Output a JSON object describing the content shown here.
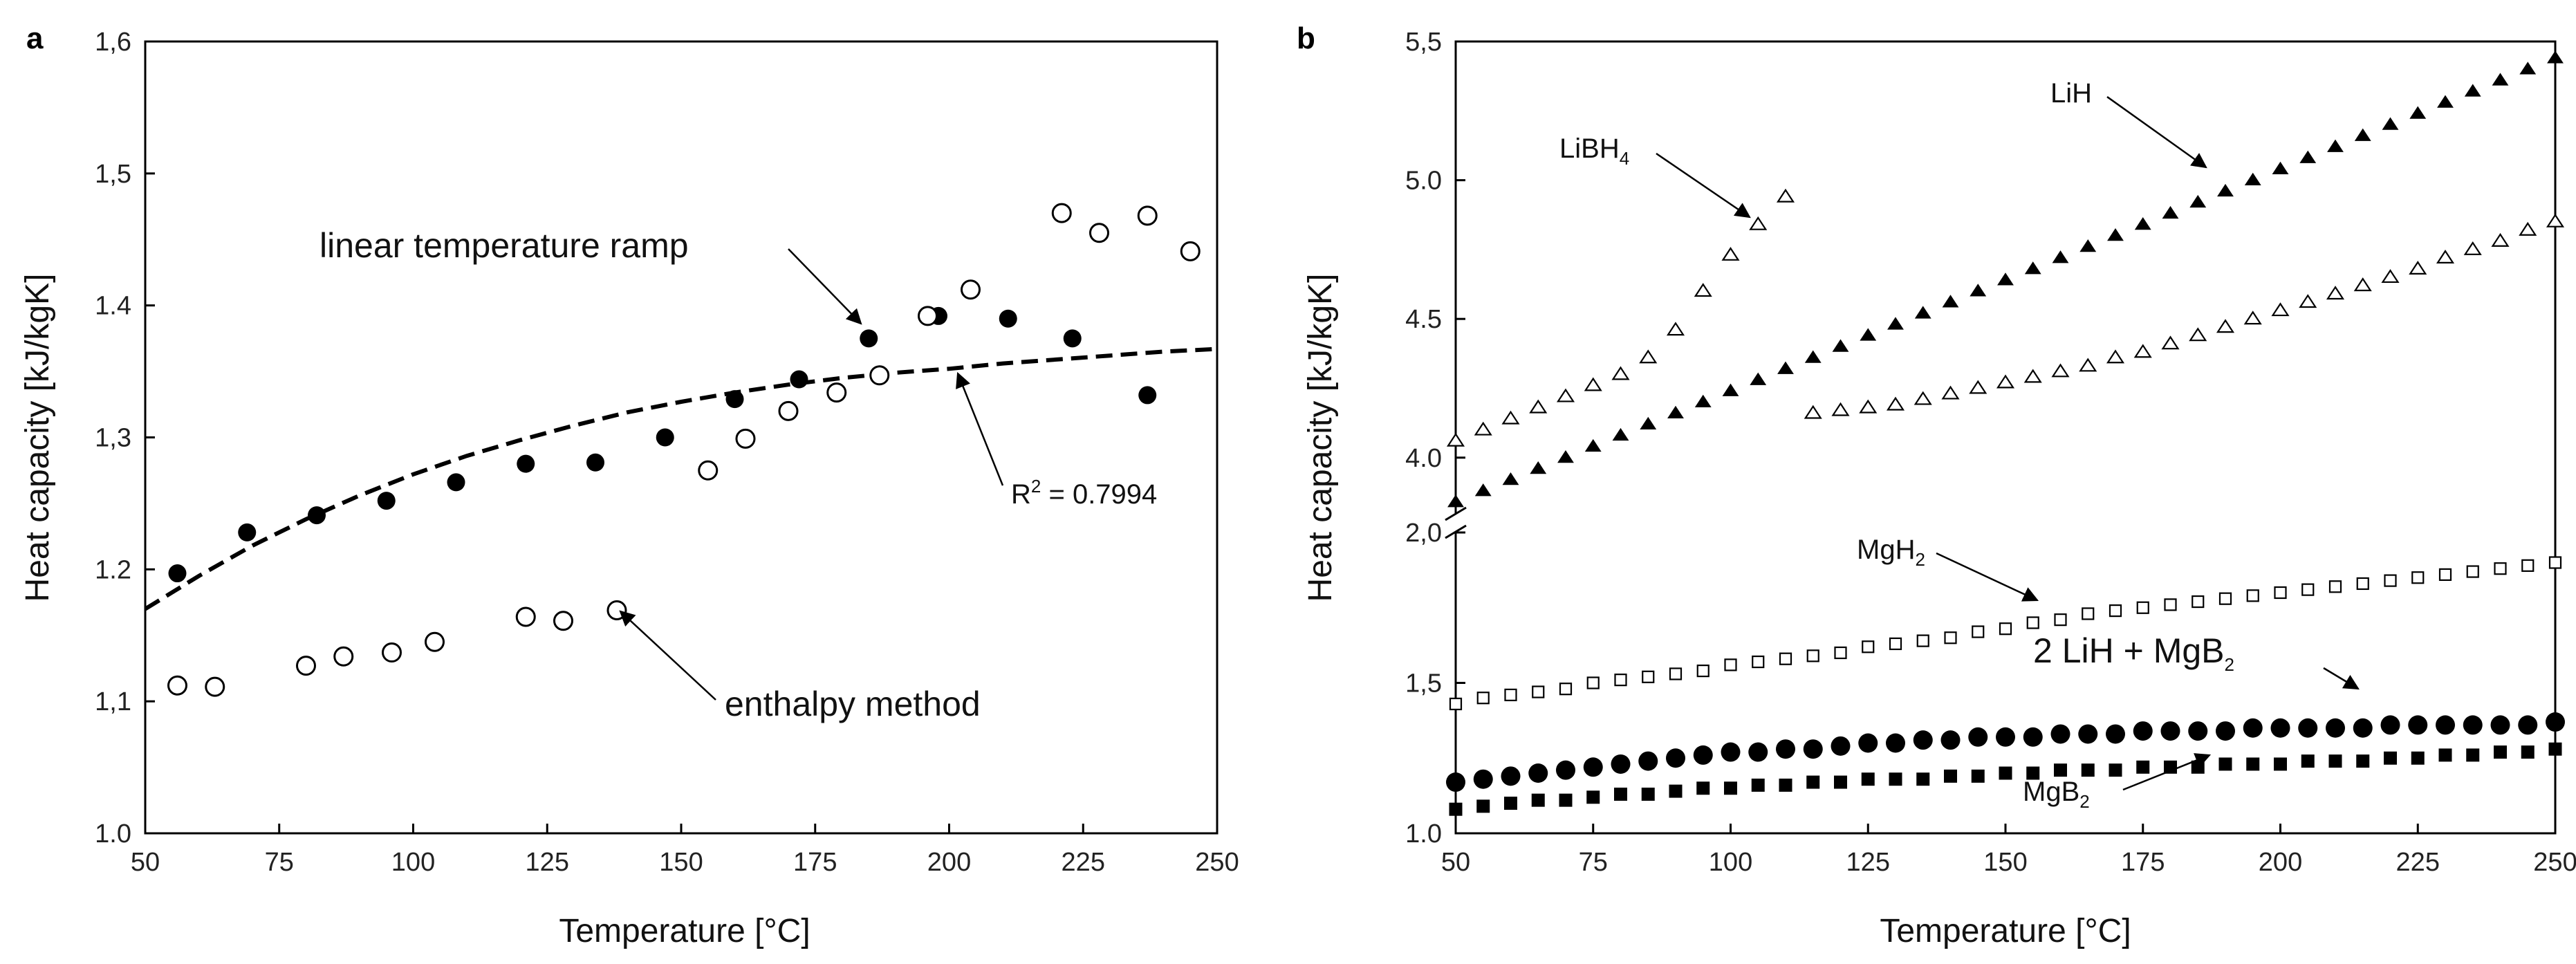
{
  "chart_data": [
    {
      "type": "scatter",
      "panel_label": "a",
      "xlabel": "Temperature [°C]",
      "ylabel": "Heat capacity [kJ/kgK]",
      "xlim": [
        50,
        250
      ],
      "ylim": [
        1.0,
        1.6
      ],
      "xticks": [
        "50",
        "75",
        "100",
        "125",
        "150",
        "175",
        "200",
        "225",
        "250"
      ],
      "yticks": [
        "1.0",
        "1,1",
        "1.2",
        "1,3",
        "1.4",
        "1,5",
        "1,6"
      ],
      "series": [
        {
          "name": "linear temperature ramp",
          "marker": "filled-circle",
          "x": [
            56,
            69,
            82,
            95,
            108,
            121,
            134,
            147,
            160,
            172,
            185,
            198,
            211,
            223,
            237
          ],
          "y": [
            1.197,
            1.228,
            1.241,
            1.252,
            1.266,
            1.28,
            1.281,
            1.3,
            1.329,
            1.344,
            1.375,
            1.392,
            1.39,
            1.375,
            1.332
          ]
        },
        {
          "name": "enthalpy method",
          "marker": "open-circle",
          "x": [
            56,
            63,
            80,
            87,
            96,
            104,
            121,
            128,
            138,
            155,
            162,
            170,
            179,
            187,
            196,
            204,
            221,
            228,
            237,
            245
          ],
          "y": [
            1.112,
            1.111,
            1.127,
            1.134,
            1.137,
            1.145,
            1.164,
            1.161,
            1.169,
            1.275,
            1.299,
            1.32,
            1.334,
            1.347,
            1.392,
            1.412,
            1.47,
            1.455,
            1.468,
            1.441
          ]
        },
        {
          "name": "fit",
          "style": "dashed-line",
          "x": [
            50,
            60,
            70,
            80,
            90,
            100,
            110,
            120,
            130,
            140,
            150,
            160,
            170,
            180,
            190,
            200,
            210,
            220,
            230,
            240,
            250
          ],
          "y": [
            1.17,
            1.195,
            1.218,
            1.238,
            1.256,
            1.272,
            1.286,
            1.298,
            1.309,
            1.319,
            1.327,
            1.334,
            1.34,
            1.345,
            1.349,
            1.352,
            1.356,
            1.359,
            1.362,
            1.365,
            1.367
          ]
        }
      ],
      "annotations": [
        {
          "text": "linear temperature ramp",
          "target": [
            185,
            1.375
          ]
        },
        {
          "text": "enthalpy method",
          "target": [
            138,
            1.169
          ]
        },
        {
          "text_main": "R",
          "text_sup": "2",
          "text_rest": " = 0.7994",
          "target": [
            200,
            1.352
          ]
        }
      ]
    },
    {
      "type": "scatter",
      "panel_label": "b",
      "xlabel": "Temperature [°C]",
      "ylabel": "Heat capacity [kJ/kgK]",
      "xlim": [
        50,
        250
      ],
      "axis_break": true,
      "lower_ylim": [
        1.0,
        2.0
      ],
      "upper_ylim": [
        3.8,
        5.5
      ],
      "xticks": [
        "50",
        "75",
        "100",
        "125",
        "150",
        "175",
        "200",
        "225",
        "250"
      ],
      "lower_yticks": [
        "1.0",
        "1,5",
        "2,0"
      ],
      "upper_yticks": [
        "4.0",
        "4.5",
        "5.0",
        "5,5"
      ],
      "series": [
        {
          "name": "LiH",
          "marker": "filled-triangle",
          "x": [
            50,
            55,
            60,
            65,
            70,
            75,
            80,
            85,
            90,
            95,
            100,
            105,
            110,
            115,
            120,
            125,
            130,
            135,
            140,
            145,
            150,
            155,
            160,
            165,
            170,
            175,
            180,
            185,
            190,
            195,
            200,
            205,
            210,
            215,
            220,
            225,
            230,
            235,
            240,
            245,
            250
          ],
          "y": [
            3.84,
            3.88,
            3.92,
            3.96,
            4.0,
            4.04,
            4.08,
            4.12,
            4.16,
            4.2,
            4.24,
            4.28,
            4.32,
            4.36,
            4.4,
            4.44,
            4.48,
            4.52,
            4.56,
            4.6,
            4.64,
            4.68,
            4.72,
            4.76,
            4.8,
            4.84,
            4.88,
            4.92,
            4.96,
            5.0,
            5.04,
            5.08,
            5.12,
            5.16,
            5.2,
            5.24,
            5.28,
            5.32,
            5.36,
            5.4,
            5.44
          ]
        },
        {
          "name": "LiBH4",
          "marker": "open-triangle",
          "x": [
            50,
            55,
            60,
            65,
            70,
            75,
            80,
            85,
            90,
            95,
            100,
            105,
            110,
            115,
            120,
            125,
            130,
            135,
            140,
            145,
            150,
            155,
            160,
            165,
            170,
            175,
            180,
            185,
            190,
            195,
            200,
            205,
            210,
            215,
            220,
            225,
            230,
            235,
            240,
            245,
            250
          ],
          "y": [
            4.06,
            4.1,
            4.14,
            4.18,
            4.22,
            4.26,
            4.3,
            4.36,
            4.46,
            4.6,
            4.73,
            4.84,
            4.94,
            4.16,
            4.17,
            4.18,
            4.19,
            4.21,
            4.23,
            4.25,
            4.27,
            4.29,
            4.31,
            4.33,
            4.36,
            4.38,
            4.41,
            4.44,
            4.47,
            4.5,
            4.53,
            4.56,
            4.59,
            4.62,
            4.65,
            4.68,
            4.72,
            4.75,
            4.78,
            4.82,
            4.85
          ]
        },
        {
          "name": "MgH2",
          "marker": "open-square",
          "x": [
            50,
            55,
            60,
            65,
            70,
            75,
            80,
            85,
            90,
            95,
            100,
            105,
            110,
            115,
            120,
            125,
            130,
            135,
            140,
            145,
            150,
            155,
            160,
            165,
            170,
            175,
            180,
            185,
            190,
            195,
            200,
            205,
            210,
            215,
            220,
            225,
            230,
            235,
            240,
            245,
            250
          ],
          "y": [
            1.43,
            1.45,
            1.46,
            1.47,
            1.48,
            1.5,
            1.51,
            1.52,
            1.53,
            1.54,
            1.56,
            1.57,
            1.58,
            1.59,
            1.6,
            1.62,
            1.63,
            1.64,
            1.65,
            1.67,
            1.68,
            1.7,
            1.71,
            1.73,
            1.74,
            1.75,
            1.76,
            1.77,
            1.78,
            1.79,
            1.8,
            1.81,
            1.82,
            1.83,
            1.84,
            1.85,
            1.86,
            1.87,
            1.88,
            1.89,
            1.9
          ]
        },
        {
          "name": "2 LiH + MgB2",
          "marker": "filled-circle",
          "x": [
            50,
            55,
            60,
            65,
            70,
            75,
            80,
            85,
            90,
            95,
            100,
            105,
            110,
            115,
            120,
            125,
            130,
            135,
            140,
            145,
            150,
            155,
            160,
            165,
            170,
            175,
            180,
            185,
            190,
            195,
            200,
            205,
            210,
            215,
            220,
            225,
            230,
            235,
            240,
            245,
            250
          ],
          "y": [
            1.17,
            1.18,
            1.19,
            1.2,
            1.21,
            1.22,
            1.23,
            1.24,
            1.25,
            1.26,
            1.27,
            1.27,
            1.28,
            1.28,
            1.29,
            1.3,
            1.3,
            1.31,
            1.31,
            1.32,
            1.32,
            1.32,
            1.33,
            1.33,
            1.33,
            1.34,
            1.34,
            1.34,
            1.34,
            1.35,
            1.35,
            1.35,
            1.35,
            1.35,
            1.36,
            1.36,
            1.36,
            1.36,
            1.36,
            1.36,
            1.37
          ]
        },
        {
          "name": "MgB2",
          "marker": "filled-square",
          "x": [
            50,
            55,
            60,
            65,
            70,
            75,
            80,
            85,
            90,
            95,
            100,
            105,
            110,
            115,
            120,
            125,
            130,
            135,
            140,
            145,
            150,
            155,
            160,
            165,
            170,
            175,
            180,
            185,
            190,
            195,
            200,
            205,
            210,
            215,
            220,
            225,
            230,
            235,
            240,
            245,
            250
          ],
          "y": [
            1.08,
            1.09,
            1.1,
            1.11,
            1.11,
            1.12,
            1.13,
            1.13,
            1.14,
            1.15,
            1.15,
            1.16,
            1.16,
            1.17,
            1.17,
            1.18,
            1.18,
            1.18,
            1.19,
            1.19,
            1.2,
            1.2,
            1.21,
            1.21,
            1.21,
            1.22,
            1.22,
            1.22,
            1.23,
            1.23,
            1.23,
            1.24,
            1.24,
            1.24,
            1.25,
            1.25,
            1.26,
            1.26,
            1.27,
            1.27,
            1.28
          ]
        }
      ],
      "annotations": [
        {
          "text_main": "LiBH",
          "text_sub": "4",
          "target": [
            105,
            4.84
          ]
        },
        {
          "text_main": "LiH",
          "target": [
            190,
            4.96
          ]
        },
        {
          "text_main": "MgH",
          "text_sub": "2",
          "target": [
            160,
            1.72
          ]
        },
        {
          "text_main": "2 LiH + MgB",
          "text_sub": "2",
          "target": [
            226,
            1.4
          ]
        },
        {
          "text_main": "MgB",
          "text_sub": "2",
          "target": [
            190,
            1.23
          ]
        }
      ]
    }
  ]
}
